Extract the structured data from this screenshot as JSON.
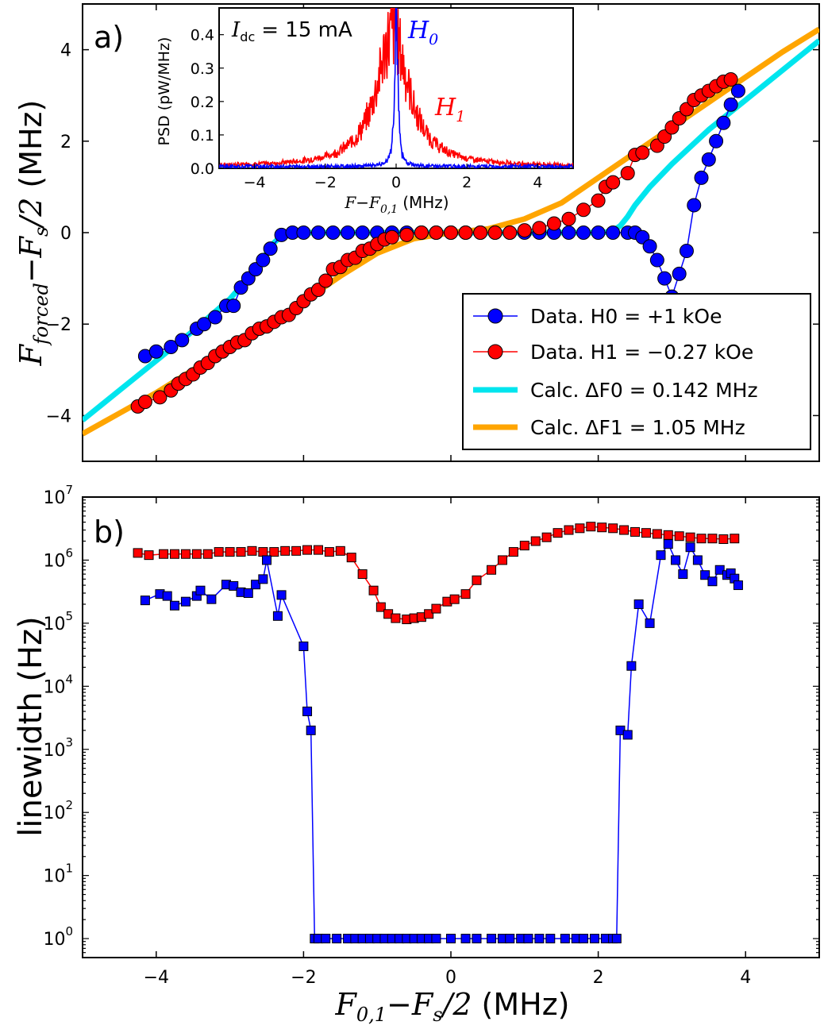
{
  "colors": {
    "h0": "#0000ff",
    "h1": "#ff0000",
    "calc0": "#00e5ee",
    "calc1": "#ffa500",
    "axis": "#000000"
  },
  "chart_data": [
    {
      "panel": "a)",
      "type": "line",
      "xlim": [
        -5,
        5
      ],
      "ylim": [
        -5,
        5
      ],
      "xticks": [
        -4,
        -2,
        0,
        2,
        4
      ],
      "yticks": [
        -4,
        -2,
        0,
        2,
        4
      ],
      "ytick_labels": [
        "−4",
        "−2",
        "0",
        "2",
        "4"
      ],
      "ylabel": "F_forced − F_s/2 (MHz)",
      "ylabel_unit": "(MHz)",
      "legend_location": "lower-right",
      "series": [
        {
          "name": "Data. H0 = +1 kOe",
          "legend": "Data. H0 = +1 kOe",
          "kind": "markers",
          "marker": "circle",
          "color": "#0000ff",
          "x": [
            -4.15,
            -4.0,
            -3.8,
            -3.65,
            -3.45,
            -3.35,
            -3.2,
            -3.05,
            -2.95,
            -2.85,
            -2.75,
            -2.65,
            -2.55,
            -2.45,
            -2.3,
            -2.15,
            -2.0,
            -1.8,
            -1.6,
            -1.4,
            -1.2,
            -1.0,
            -0.8,
            -0.6,
            -0.4,
            -0.2,
            0.0,
            0.2,
            0.4,
            0.6,
            0.8,
            1.0,
            1.2,
            1.4,
            1.6,
            1.8,
            2.0,
            2.2,
            2.4,
            2.5,
            2.6,
            2.7,
            2.8,
            2.9,
            3.0,
            3.1,
            3.2,
            3.3,
            3.4,
            3.5,
            3.6,
            3.7,
            3.8,
            3.9
          ],
          "y": [
            -2.7,
            -2.6,
            -2.5,
            -2.35,
            -2.1,
            -2.0,
            -1.85,
            -1.6,
            -1.6,
            -1.2,
            -1.0,
            -0.8,
            -0.6,
            -0.35,
            -0.05,
            0.0,
            0.0,
            0.0,
            0.0,
            0.0,
            0.0,
            0.0,
            0.0,
            0.0,
            0.0,
            0.0,
            0.0,
            0.0,
            0.0,
            0.0,
            0.0,
            0.0,
            0.0,
            0.0,
            0.0,
            0.0,
            0.0,
            0.0,
            0.0,
            0.0,
            -0.1,
            -0.3,
            -0.6,
            -1.0,
            -1.4,
            -0.9,
            -0.4,
            0.6,
            1.2,
            1.6,
            2.0,
            2.4,
            2.8,
            3.1
          ]
        },
        {
          "name": "Data. H1 = −0.27 kOe",
          "legend": "Data. H1 = −0.27 kOe",
          "kind": "markers",
          "marker": "circle",
          "color": "#ff0000",
          "x": [
            -4.25,
            -4.15,
            -3.95,
            -3.8,
            -3.7,
            -3.6,
            -3.5,
            -3.4,
            -3.3,
            -3.2,
            -3.1,
            -3.0,
            -2.9,
            -2.8,
            -2.7,
            -2.6,
            -2.5,
            -2.4,
            -2.3,
            -2.2,
            -2.1,
            -2.0,
            -1.9,
            -1.8,
            -1.7,
            -1.6,
            -1.5,
            -1.4,
            -1.3,
            -1.2,
            -1.1,
            -1.0,
            -0.9,
            -0.8,
            -0.6,
            -0.4,
            -0.2,
            0.0,
            0.2,
            0.4,
            0.6,
            0.8,
            1.0,
            1.2,
            1.4,
            1.6,
            1.8,
            2.0,
            2.1,
            2.2,
            2.4,
            2.5,
            2.6,
            2.8,
            2.9,
            3.0,
            3.1,
            3.2,
            3.3,
            3.4,
            3.5,
            3.6,
            3.7,
            3.8
          ],
          "y": [
            -3.8,
            -3.7,
            -3.6,
            -3.45,
            -3.3,
            -3.2,
            -3.1,
            -2.95,
            -2.85,
            -2.7,
            -2.6,
            -2.5,
            -2.4,
            -2.35,
            -2.2,
            -2.1,
            -2.05,
            -1.95,
            -1.85,
            -1.8,
            -1.65,
            -1.5,
            -1.35,
            -1.25,
            -1.05,
            -0.8,
            -0.75,
            -0.6,
            -0.55,
            -0.4,
            -0.35,
            -0.25,
            -0.15,
            -0.1,
            -0.05,
            0.0,
            0.0,
            0.0,
            0.0,
            0.0,
            0.0,
            0.0,
            0.05,
            0.1,
            0.2,
            0.3,
            0.5,
            0.7,
            1.0,
            1.1,
            1.3,
            1.7,
            1.75,
            1.9,
            2.1,
            2.3,
            2.5,
            2.7,
            2.9,
            3.0,
            3.1,
            3.2,
            3.3,
            3.35
          ]
        },
        {
          "name": "Calc. ΔF0 = 0.142 MHz",
          "legend": "Calc. ΔF0 = 0.142 MHz",
          "kind": "curve",
          "color": "#00e5ee",
          "deltaF_MHz": 0.142,
          "x": [
            -5.0,
            -4.5,
            -4.0,
            -3.5,
            -3.0,
            -2.7,
            -2.5,
            -2.4,
            -2.3,
            -2.2,
            -2.0,
            0.0,
            2.0,
            2.1,
            2.2,
            2.3,
            2.4,
            2.5,
            2.7,
            3.0,
            3.5,
            4.0,
            4.5,
            5.0
          ],
          "y": [
            -4.1,
            -3.45,
            -2.8,
            -2.15,
            -1.45,
            -0.9,
            -0.45,
            -0.22,
            -0.07,
            -0.01,
            0.0,
            0.0,
            0.0,
            0.01,
            0.04,
            0.15,
            0.35,
            0.6,
            1.0,
            1.5,
            2.25,
            2.9,
            3.55,
            4.2
          ]
        },
        {
          "name": "Calc. ΔF1 = 1.05 MHz",
          "legend": "Calc. ΔF1 = 1.05 MHz",
          "kind": "curve",
          "color": "#ffa500",
          "deltaF_MHz": 1.05,
          "x": [
            -5.0,
            -4.5,
            -4.0,
            -3.5,
            -3.0,
            -2.5,
            -2.0,
            -1.5,
            -1.0,
            -0.5,
            0.0,
            0.5,
            1.0,
            1.5,
            2.0,
            2.5,
            3.0,
            3.5,
            4.0,
            4.5,
            5.0
          ],
          "y": [
            -4.4,
            -3.95,
            -3.5,
            -3.0,
            -2.55,
            -2.05,
            -1.5,
            -0.95,
            -0.45,
            -0.13,
            0.0,
            0.08,
            0.3,
            0.65,
            1.2,
            1.75,
            2.3,
            2.85,
            3.4,
            3.95,
            4.45
          ]
        }
      ]
    },
    {
      "panel": "inset",
      "type": "line",
      "xlim": [
        -5,
        5
      ],
      "ylim": [
        0.0,
        0.48
      ],
      "xticks": [
        -4,
        -2,
        0,
        2,
        4
      ],
      "yticks": [
        0.0,
        0.1,
        0.2,
        0.3,
        0.4
      ],
      "xtick_labels": [
        "−4",
        "−2",
        "0",
        "2",
        "4"
      ],
      "ytick_labels": [
        "0.0",
        "0.1",
        "0.2",
        "0.3",
        "0.4"
      ],
      "ylabel": "PSD  (pW/MHz)",
      "xlabel": "F − F0,1 (MHz)",
      "xlabel_unit": "(MHz)",
      "annotation": "I_dc = 15 mA",
      "annotation_value": "= 15 mA",
      "series": [
        {
          "name": "H0",
          "color": "#0000ff",
          "shape": "narrow-peak",
          "peak_center_MHz": 0.0,
          "peak_height": 0.5,
          "halfwidth_MHz": 0.05,
          "noise_floor": 0.012
        },
        {
          "name": "H1",
          "color": "#ff0000",
          "shape": "broad-peak",
          "peak_center_MHz": -0.1,
          "peak_height": 0.4,
          "halfwidth_MHz": 0.55,
          "noise_floor": 0.012
        }
      ]
    },
    {
      "panel": "b)",
      "type": "line",
      "yscale": "log",
      "xlim": [
        -5,
        5
      ],
      "ylim": [
        0.5,
        10000000
      ],
      "xticks": [
        -4,
        -2,
        0,
        2,
        4
      ],
      "xtick_labels": [
        "−4",
        "−2",
        "0",
        "2",
        "4"
      ],
      "ytick_exponents": [
        0,
        1,
        2,
        3,
        4,
        5,
        6,
        7
      ],
      "ylabel": "linewidth (Hz)",
      "xlabel": "F0,1 − Fs/2 (MHz)",
      "xlabel_unit": "(MHz)",
      "series": [
        {
          "name": "H0",
          "color": "#0000ff",
          "marker": "square",
          "x": [
            -4.15,
            -3.95,
            -3.85,
            -3.75,
            -3.6,
            -3.45,
            -3.4,
            -3.25,
            -3.05,
            -2.95,
            -2.85,
            -2.75,
            -2.65,
            -2.55,
            -2.5,
            -2.35,
            -2.3,
            -2.0,
            -1.95,
            -1.9,
            -1.85,
            -1.8,
            -1.7,
            -1.55,
            -1.4,
            -1.3,
            -1.2,
            -1.1,
            -1.0,
            -0.9,
            -0.8,
            -0.7,
            -0.6,
            -0.5,
            -0.4,
            -0.3,
            -0.2,
            0.0,
            0.2,
            0.35,
            0.55,
            0.7,
            0.8,
            0.95,
            1.05,
            1.2,
            1.35,
            1.55,
            1.7,
            1.8,
            1.95,
            2.1,
            2.2,
            2.25,
            2.3,
            2.4,
            2.45,
            2.55,
            2.7,
            2.85,
            2.95,
            3.05,
            3.15,
            3.25,
            3.35,
            3.45,
            3.55,
            3.65,
            3.75,
            3.8,
            3.85,
            3.9
          ],
          "y": [
            230000,
            290000,
            270000,
            190000,
            220000,
            270000,
            330000,
            240000,
            410000,
            390000,
            310000,
            300000,
            410000,
            500000,
            1000000,
            130000,
            280000,
            43000,
            4000,
            2000,
            1,
            1,
            1,
            1,
            1,
            1,
            1,
            1,
            1,
            1,
            1,
            1,
            1,
            1,
            1,
            1,
            1,
            1,
            1,
            1,
            1,
            1,
            1,
            1,
            1,
            1,
            1,
            1,
            1,
            1,
            1,
            1,
            1,
            1,
            2000,
            1700,
            21000,
            200000,
            100000,
            1200000,
            1800000,
            1000000,
            600000,
            1600000,
            1000000,
            580000,
            460000,
            700000,
            580000,
            620000,
            510000,
            400000
          ]
        },
        {
          "name": "H1",
          "color": "#ff0000",
          "marker": "square",
          "x": [
            -4.25,
            -4.1,
            -3.9,
            -3.75,
            -3.6,
            -3.45,
            -3.3,
            -3.15,
            -3.0,
            -2.85,
            -2.7,
            -2.55,
            -2.4,
            -2.25,
            -2.1,
            -1.95,
            -1.8,
            -1.65,
            -1.5,
            -1.35,
            -1.2,
            -1.05,
            -0.95,
            -0.85,
            -0.75,
            -0.6,
            -0.5,
            -0.4,
            -0.3,
            -0.2,
            -0.05,
            0.05,
            0.2,
            0.35,
            0.55,
            0.7,
            0.85,
            1.0,
            1.15,
            1.3,
            1.45,
            1.6,
            1.75,
            1.9,
            2.05,
            2.2,
            2.35,
            2.5,
            2.65,
            2.8,
            2.95,
            3.1,
            3.25,
            3.4,
            3.55,
            3.7,
            3.85
          ],
          "y": [
            1300000,
            1200000,
            1250000,
            1250000,
            1250000,
            1250000,
            1250000,
            1350000,
            1350000,
            1350000,
            1400000,
            1350000,
            1350000,
            1400000,
            1400000,
            1450000,
            1450000,
            1350000,
            1400000,
            1100000,
            600000,
            330000,
            180000,
            140000,
            120000,
            115000,
            120000,
            125000,
            140000,
            170000,
            220000,
            240000,
            290000,
            480000,
            700000,
            1000000,
            1350000,
            1700000,
            2000000,
            2300000,
            2700000,
            3000000,
            3200000,
            3400000,
            3300000,
            3200000,
            3000000,
            2800000,
            2700000,
            2600000,
            2500000,
            2400000,
            2300000,
            2200000,
            2200000,
            2150000,
            2200000
          ]
        }
      ]
    }
  ]
}
